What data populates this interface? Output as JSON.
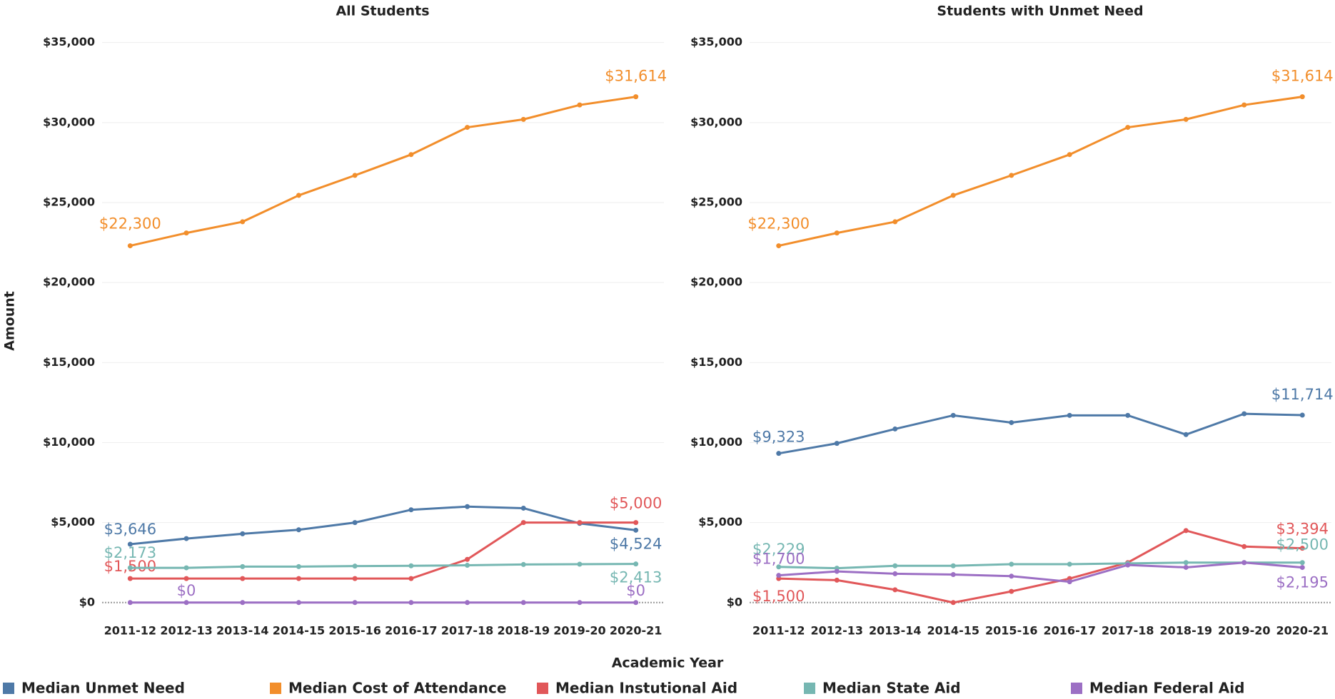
{
  "chart_data": [
    {
      "type": "line",
      "title": "All Students",
      "ylabel": "Amount",
      "xlabel": "Academic Year",
      "categories": [
        "2011-12",
        "2012-13",
        "2013-14",
        "2014-15",
        "2015-16",
        "2016-17",
        "2017-18",
        "2018-19",
        "2019-20",
        "2020-21"
      ],
      "ylim": [
        -900,
        36100
      ],
      "yticks": [
        {
          "value": 0,
          "label": "$0"
        },
        {
          "value": 5000,
          "label": "$5,000"
        },
        {
          "value": 10000,
          "label": "$10,000"
        },
        {
          "value": 15000,
          "label": "$15,000"
        },
        {
          "value": 20000,
          "label": "$20,000"
        },
        {
          "value": 25000,
          "label": "$25,000"
        },
        {
          "value": 30000,
          "label": "$30,000"
        },
        {
          "value": 35000,
          "label": "$35,000"
        }
      ],
      "grid": true,
      "series": [
        {
          "name": "Median Unmet Need",
          "color": "#4e79a7",
          "values": [
            3646,
            4000,
            4300,
            4550,
            5000,
            5800,
            6000,
            5900,
            4950,
            4524
          ],
          "value_labels": [
            "$3,646",
            null,
            null,
            null,
            null,
            null,
            null,
            null,
            null,
            "$4,524"
          ]
        },
        {
          "name": "Median Cost of Attendance",
          "color": "#f28e2b",
          "values": [
            22300,
            23100,
            23800,
            25450,
            26700,
            28000,
            29700,
            30200,
            31100,
            31614
          ],
          "value_labels": [
            "$22,300",
            null,
            null,
            null,
            null,
            null,
            null,
            null,
            null,
            "$31,614"
          ]
        },
        {
          "name": "Median Instutional Aid",
          "color": "#e15759",
          "values": [
            1500,
            1500,
            1500,
            1500,
            1500,
            1500,
            2700,
            5000,
            5000,
            5000
          ],
          "value_labels": [
            "$1,500",
            null,
            null,
            null,
            null,
            null,
            null,
            null,
            null,
            "$5,000"
          ]
        },
        {
          "name": "Median State Aid",
          "color": "#76b7b2",
          "values": [
            2173,
            2173,
            2250,
            2250,
            2280,
            2300,
            2330,
            2380,
            2400,
            2413
          ],
          "value_labels": [
            "$2,173",
            null,
            null,
            null,
            null,
            null,
            null,
            null,
            null,
            "$2,413"
          ]
        },
        {
          "name": "Median Federal Aid",
          "color": "#9c6fc4",
          "values": [
            0,
            0,
            0,
            0,
            0,
            0,
            0,
            0,
            0,
            0
          ],
          "value_labels": [
            null,
            "$0",
            null,
            null,
            null,
            null,
            null,
            null,
            null,
            "$0"
          ]
        }
      ]
    },
    {
      "type": "line",
      "title": "Students with Unmet Need",
      "categories": [
        "2011-12",
        "2012-13",
        "2013-14",
        "2014-15",
        "2015-16",
        "2016-17",
        "2017-18",
        "2018-19",
        "2019-20",
        "2020-21"
      ],
      "ylim": [
        -900,
        36100
      ],
      "yticks": [
        {
          "value": 0,
          "label": "$0"
        },
        {
          "value": 5000,
          "label": "$5,000"
        },
        {
          "value": 10000,
          "label": "$10,000"
        },
        {
          "value": 15000,
          "label": "$15,000"
        },
        {
          "value": 20000,
          "label": "$20,000"
        },
        {
          "value": 25000,
          "label": "$25,000"
        },
        {
          "value": 30000,
          "label": "$30,000"
        },
        {
          "value": 35000,
          "label": "$35,000"
        }
      ],
      "grid": true,
      "series": [
        {
          "color": "#4e79a7",
          "values": [
            9323,
            9950,
            10850,
            11700,
            11250,
            11700,
            11700,
            10500,
            11800,
            11714
          ],
          "value_labels": [
            "$9,323",
            null,
            null,
            null,
            null,
            null,
            null,
            null,
            null,
            "$11,714"
          ]
        },
        {
          "color": "#f28e2b",
          "values": [
            22300,
            23100,
            23800,
            25450,
            26700,
            28000,
            29700,
            30200,
            31100,
            31614
          ],
          "value_labels": [
            "$22,300",
            null,
            null,
            null,
            null,
            null,
            null,
            null,
            null,
            "$31,614"
          ]
        },
        {
          "color": "#e15759",
          "values": [
            1500,
            1400,
            800,
            0,
            700,
            1500,
            2500,
            4500,
            3500,
            3394
          ],
          "value_labels": [
            "$1,500",
            null,
            null,
            null,
            null,
            null,
            null,
            null,
            null,
            "$3,394"
          ]
        },
        {
          "color": "#76b7b2",
          "values": [
            2229,
            2150,
            2300,
            2300,
            2400,
            2400,
            2450,
            2500,
            2500,
            2500
          ],
          "value_labels": [
            "$2,229",
            null,
            null,
            null,
            null,
            null,
            null,
            null,
            null,
            "$2,500"
          ]
        },
        {
          "color": "#9c6fc4",
          "values": [
            1700,
            1950,
            1800,
            1750,
            1650,
            1300,
            2350,
            2200,
            2500,
            2195
          ],
          "value_labels": [
            "$1,700",
            null,
            null,
            null,
            null,
            null,
            null,
            null,
            null,
            "$2,195"
          ]
        }
      ]
    }
  ]
}
